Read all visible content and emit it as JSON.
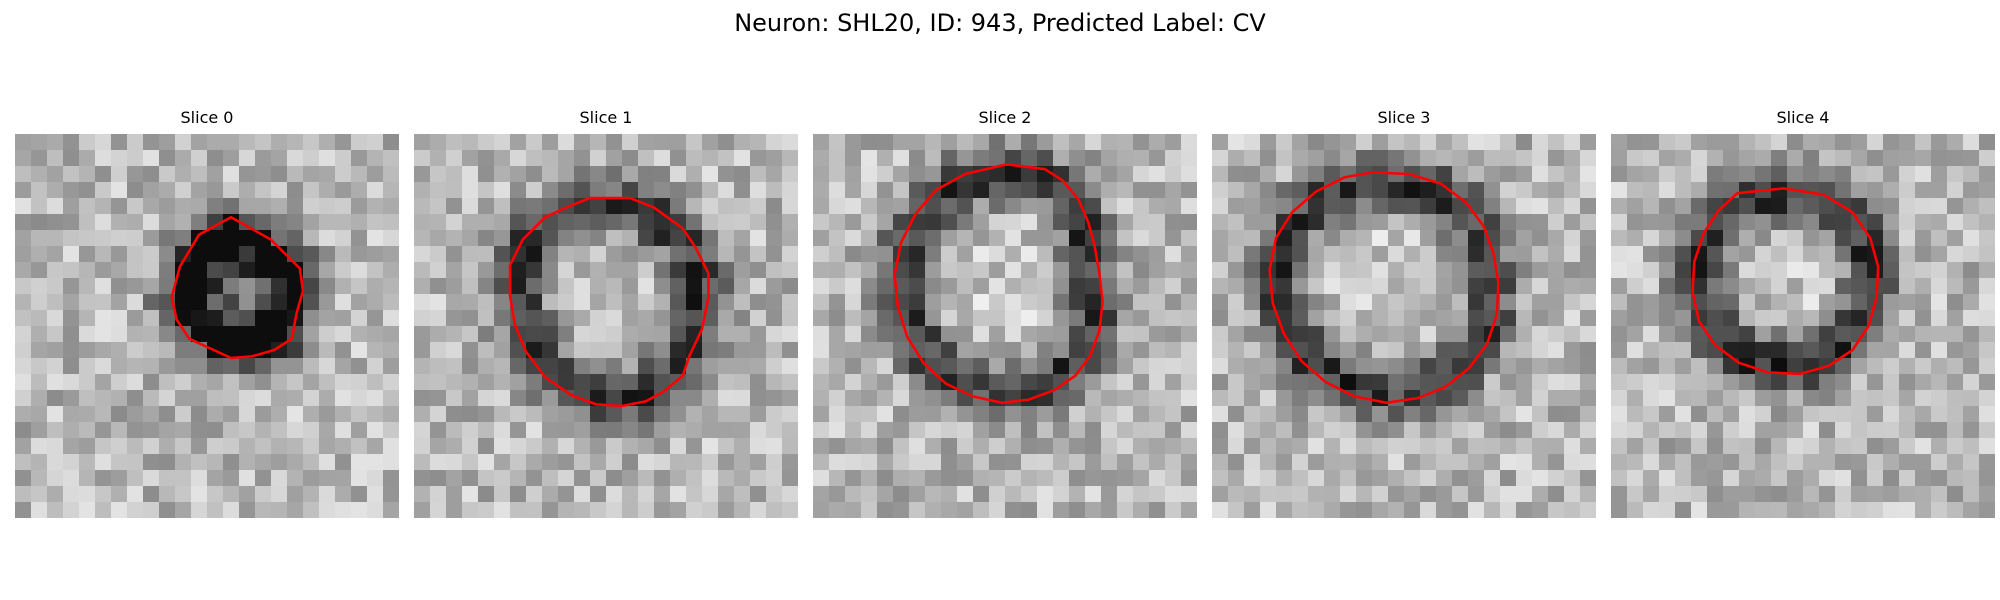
{
  "figure": {
    "title": "Neuron: SHL20, ID: 943, Predicted Label: CV",
    "contour_color": "#ff0000"
  },
  "panels": [
    {
      "title": "Slice 0",
      "image": "grayscale EM patch of a small dark cell body with a small red segmentation contour",
      "contour": [
        [
          13.5,
          5.2
        ],
        [
          16.0,
          6.6
        ],
        [
          17.8,
          8.4
        ],
        [
          18.0,
          9.8
        ],
        [
          17.6,
          11.2
        ],
        [
          17.3,
          12.8
        ],
        [
          16.2,
          13.5
        ],
        [
          14.8,
          13.9
        ],
        [
          13.5,
          14.0
        ],
        [
          12.2,
          13.4
        ],
        [
          10.9,
          12.8
        ],
        [
          10.1,
          11.6
        ],
        [
          9.8,
          10.2
        ],
        [
          10.3,
          8.3
        ],
        [
          11.5,
          6.3
        ]
      ]
    },
    {
      "title": "Slice 1",
      "image": "grayscale EM patch, noisy texture with a medium red segmentation contour",
      "contour": [
        [
          11.0,
          4.0
        ],
        [
          13.5,
          4.0
        ],
        [
          15.0,
          4.6
        ],
        [
          16.8,
          5.9
        ],
        [
          17.6,
          7.1
        ],
        [
          18.4,
          8.7
        ],
        [
          18.4,
          10.2
        ],
        [
          18.0,
          12.2
        ],
        [
          17.2,
          13.9
        ],
        [
          16.8,
          15.1
        ],
        [
          15.6,
          16.1
        ],
        [
          14.5,
          16.7
        ],
        [
          13.0,
          17.0
        ],
        [
          11.4,
          16.9
        ],
        [
          9.8,
          16.3
        ],
        [
          8.2,
          15.2
        ],
        [
          7.0,
          13.6
        ],
        [
          6.3,
          11.9
        ],
        [
          6.0,
          10.1
        ],
        [
          6.0,
          8.2
        ],
        [
          6.8,
          6.6
        ],
        [
          8.2,
          5.2
        ],
        [
          9.5,
          4.6
        ]
      ]
    },
    {
      "title": "Slice 2",
      "image": "grayscale EM patch, round bright cell body with dark membrane and red contour",
      "contour": [
        [
          12.1,
          1.9
        ],
        [
          14.5,
          2.2
        ],
        [
          15.6,
          2.9
        ],
        [
          16.6,
          4.1
        ],
        [
          17.2,
          5.5
        ],
        [
          17.6,
          7.0
        ],
        [
          17.9,
          8.7
        ],
        [
          18.1,
          10.5
        ],
        [
          17.9,
          12.3
        ],
        [
          17.3,
          13.9
        ],
        [
          16.4,
          15.1
        ],
        [
          15.1,
          16.0
        ],
        [
          13.5,
          16.6
        ],
        [
          11.8,
          16.8
        ],
        [
          10.0,
          16.4
        ],
        [
          8.3,
          15.6
        ],
        [
          6.9,
          14.3
        ],
        [
          5.9,
          12.7
        ],
        [
          5.3,
          10.8
        ],
        [
          5.1,
          8.8
        ],
        [
          5.5,
          6.8
        ],
        [
          6.4,
          5.0
        ],
        [
          7.7,
          3.5
        ],
        [
          9.5,
          2.5
        ]
      ]
    },
    {
      "title": "Slice 3",
      "image": "grayscale EM patch, large cell body with thick dark rim and red contour",
      "contour": [
        [
          10.0,
          2.4
        ],
        [
          12.3,
          2.5
        ],
        [
          14.3,
          3.1
        ],
        [
          15.9,
          4.3
        ],
        [
          17.0,
          5.8
        ],
        [
          17.6,
          7.5
        ],
        [
          17.9,
          9.3
        ],
        [
          17.8,
          11.3
        ],
        [
          17.2,
          13.1
        ],
        [
          16.1,
          14.6
        ],
        [
          14.6,
          15.8
        ],
        [
          12.9,
          16.5
        ],
        [
          10.9,
          16.8
        ],
        [
          8.9,
          16.4
        ],
        [
          7.1,
          15.5
        ],
        [
          5.6,
          14.2
        ],
        [
          4.5,
          12.5
        ],
        [
          3.8,
          10.6
        ],
        [
          3.6,
          8.5
        ],
        [
          4.0,
          6.5
        ],
        [
          5.0,
          4.9
        ],
        [
          6.5,
          3.6
        ],
        [
          8.3,
          2.7
        ]
      ]
    },
    {
      "title": "Slice 4",
      "image": "grayscale EM patch, cell body with dark ring and red contour",
      "contour": [
        [
          7.9,
          3.7
        ],
        [
          10.8,
          3.4
        ],
        [
          13.3,
          3.8
        ],
        [
          15.1,
          4.9
        ],
        [
          16.2,
          6.5
        ],
        [
          16.7,
          8.3
        ],
        [
          16.6,
          10.2
        ],
        [
          16.1,
          12.0
        ],
        [
          15.1,
          13.5
        ],
        [
          13.6,
          14.5
        ],
        [
          11.8,
          15.0
        ],
        [
          9.8,
          14.9
        ],
        [
          8.0,
          14.3
        ],
        [
          6.5,
          13.2
        ],
        [
          5.5,
          11.7
        ],
        [
          5.1,
          9.9
        ],
        [
          5.2,
          8.0
        ],
        [
          5.8,
          6.2
        ],
        [
          6.7,
          4.8
        ]
      ]
    }
  ]
}
